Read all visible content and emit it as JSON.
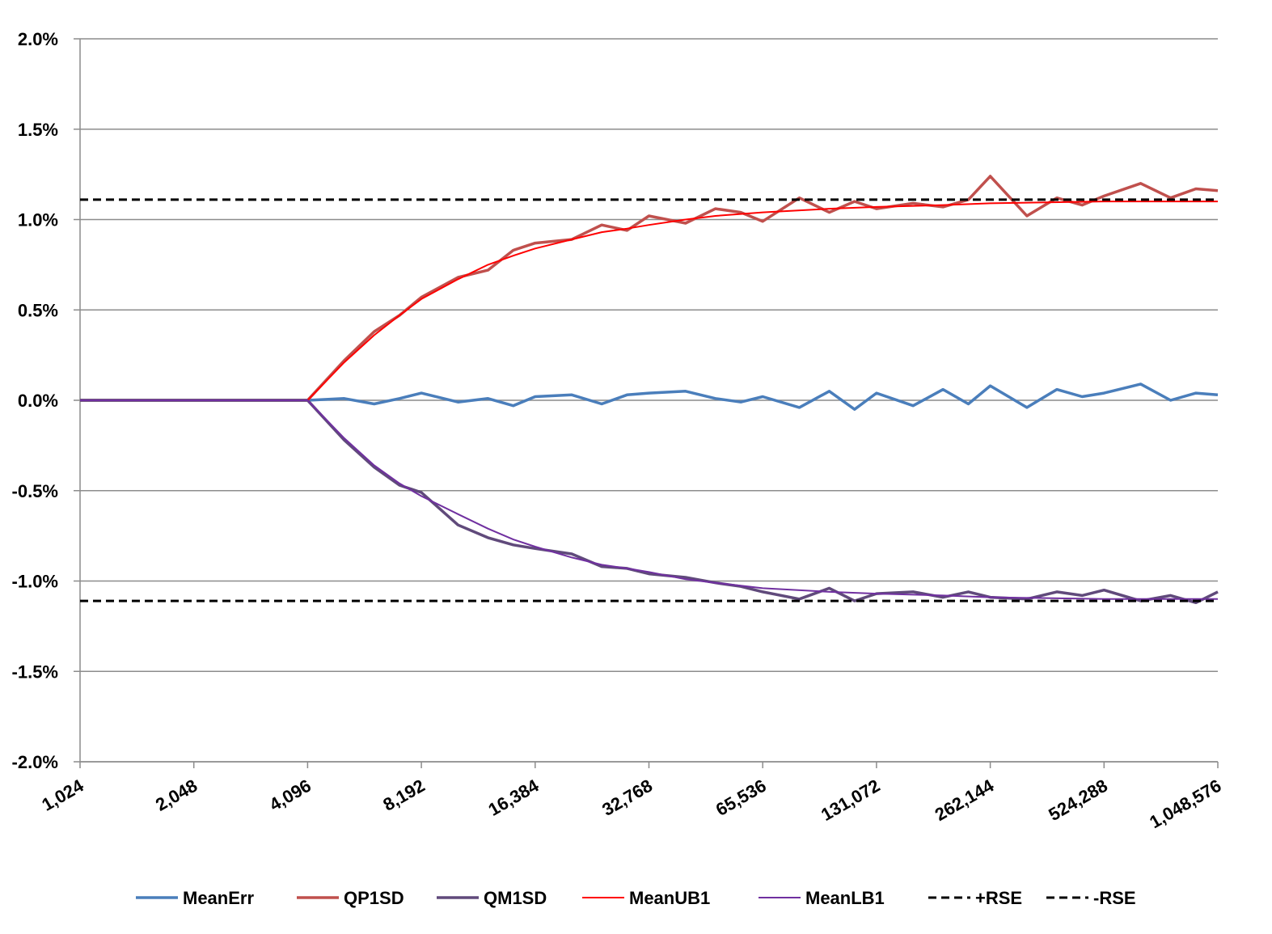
{
  "chart_data": {
    "type": "line",
    "x_scale": "log2",
    "x_ticks": [
      1024,
      2048,
      4096,
      8192,
      16384,
      32768,
      65536,
      131072,
      262144,
      524288,
      1048576
    ],
    "x_tick_labels": [
      "1,024",
      "2,048",
      "4,096",
      "8,192",
      "16,384",
      "32,768",
      "65,536",
      "131,072",
      "262,144",
      "524,288",
      "1,048,576"
    ],
    "xlim": [
      1024,
      1048576
    ],
    "y_ticks": [
      -0.02,
      -0.015,
      -0.01,
      -0.005,
      0,
      0.005,
      0.01,
      0.015,
      0.02
    ],
    "y_tick_labels": [
      "-2.0%",
      "-1.5%",
      "-1.0%",
      "-0.5%",
      "0.0%",
      "0.5%",
      "1.0%",
      "1.5%",
      "2.0%"
    ],
    "ylim": [
      -0.02,
      0.02
    ],
    "grid": "horizontal",
    "legend_position": "bottom",
    "title": "",
    "xlabel": "",
    "ylabel": "",
    "series": [
      {
        "name": "MeanErr",
        "color": "#4A7EBB",
        "style": "solid-thick",
        "x": [
          1024,
          4096,
          5120,
          6144,
          7168,
          8192,
          10240,
          12288,
          14336,
          16384,
          20480,
          24576,
          28672,
          32768,
          40960,
          49152,
          57344,
          65536,
          81920,
          98304,
          114688,
          131072,
          163840,
          196608,
          229376,
          262144,
          327680,
          393216,
          458752,
          524288,
          655360,
          786432,
          917504,
          1048576
        ],
        "y": [
          0,
          0,
          0.0001,
          -0.0002,
          0.0001,
          0.0004,
          -0.0001,
          0.0001,
          -0.0003,
          0.0002,
          0.0003,
          -0.0002,
          0.0003,
          0.0004,
          0.0005,
          0.0001,
          -0.0001,
          0.0002,
          -0.0004,
          0.0005,
          -0.0005,
          0.0004,
          -0.0003,
          0.0006,
          -0.0002,
          0.0008,
          -0.0004,
          0.0006,
          0.0002,
          0.0004,
          0.0009,
          0.0,
          0.0004,
          0.0003
        ]
      },
      {
        "name": "QP1SD",
        "color": "#C0504D",
        "style": "solid-thick",
        "x": [
          1024,
          4096,
          5120,
          6144,
          7168,
          8192,
          10240,
          12288,
          14336,
          16384,
          20480,
          24576,
          28672,
          32768,
          40960,
          49152,
          57344,
          65536,
          81920,
          98304,
          114688,
          131072,
          163840,
          196608,
          229376,
          262144,
          327680,
          393216,
          458752,
          524288,
          655360,
          786432,
          917504,
          1048576
        ],
        "y": [
          0,
          0,
          0.0022,
          0.0038,
          0.0047,
          0.0057,
          0.0068,
          0.0072,
          0.0083,
          0.0087,
          0.0089,
          0.0097,
          0.0094,
          0.0102,
          0.0098,
          0.0106,
          0.0104,
          0.0099,
          0.0112,
          0.0104,
          0.011,
          0.0106,
          0.0109,
          0.0107,
          0.0111,
          0.0124,
          0.0102,
          0.0112,
          0.0108,
          0.0113,
          0.012,
          0.0112,
          0.0117,
          0.0116
        ]
      },
      {
        "name": "QM1SD",
        "color": "#604A7B",
        "style": "solid-thick",
        "x": [
          1024,
          4096,
          5120,
          6144,
          7168,
          8192,
          10240,
          12288,
          14336,
          16384,
          20480,
          24576,
          28672,
          32768,
          40960,
          49152,
          57344,
          65536,
          81920,
          98304,
          114688,
          131072,
          163840,
          196608,
          229376,
          262144,
          327680,
          393216,
          458752,
          524288,
          655360,
          786432,
          917504,
          1048576
        ],
        "y": [
          0,
          0,
          -0.0022,
          -0.0037,
          -0.0047,
          -0.0051,
          -0.0069,
          -0.0076,
          -0.008,
          -0.0082,
          -0.0085,
          -0.0092,
          -0.0093,
          -0.0096,
          -0.0098,
          -0.0101,
          -0.0103,
          -0.0106,
          -0.011,
          -0.0104,
          -0.0111,
          -0.0107,
          -0.0106,
          -0.0109,
          -0.0106,
          -0.0109,
          -0.011,
          -0.0106,
          -0.0108,
          -0.0105,
          -0.0111,
          -0.0108,
          -0.0112,
          -0.0106
        ]
      },
      {
        "name": "MeanUB1",
        "color": "#FF0000",
        "style": "solid-thin",
        "x": [
          1024,
          4096,
          5120,
          6144,
          7168,
          8192,
          10240,
          12288,
          14336,
          16384,
          20480,
          24576,
          28672,
          32768,
          40960,
          49152,
          65536,
          98304,
          131072,
          196608,
          262144,
          524288,
          1048576
        ],
        "y": [
          0,
          0,
          0.0021,
          0.0036,
          0.0047,
          0.0056,
          0.0067,
          0.0075,
          0.008,
          0.0084,
          0.0089,
          0.0093,
          0.0095,
          0.0097,
          0.01,
          0.0102,
          0.0104,
          0.0106,
          0.0107,
          0.0108,
          0.0109,
          0.011,
          0.011
        ]
      },
      {
        "name": "MeanLB1",
        "color": "#7030A0",
        "style": "solid-thin",
        "x": [
          1024,
          4096,
          5120,
          6144,
          7168,
          8192,
          10240,
          12288,
          14336,
          16384,
          20480,
          24576,
          28672,
          32768,
          40960,
          49152,
          65536,
          98304,
          131072,
          196608,
          262144,
          524288,
          1048576
        ],
        "y": [
          0,
          0,
          -0.0021,
          -0.0036,
          -0.0046,
          -0.0053,
          -0.0063,
          -0.0071,
          -0.0077,
          -0.0081,
          -0.0087,
          -0.0091,
          -0.0093,
          -0.0095,
          -0.0099,
          -0.0101,
          -0.0104,
          -0.0106,
          -0.0107,
          -0.0108,
          -0.0109,
          -0.011,
          -0.011
        ]
      },
      {
        "name": "+RSE",
        "color": "#000000",
        "style": "dashed",
        "x": [
          1024,
          1048576
        ],
        "y": [
          0.0111,
          0.0111
        ]
      },
      {
        "name": "-RSE",
        "color": "#000000",
        "style": "dashed",
        "x": [
          1024,
          1048576
        ],
        "y": [
          -0.0111,
          -0.0111
        ]
      }
    ]
  }
}
